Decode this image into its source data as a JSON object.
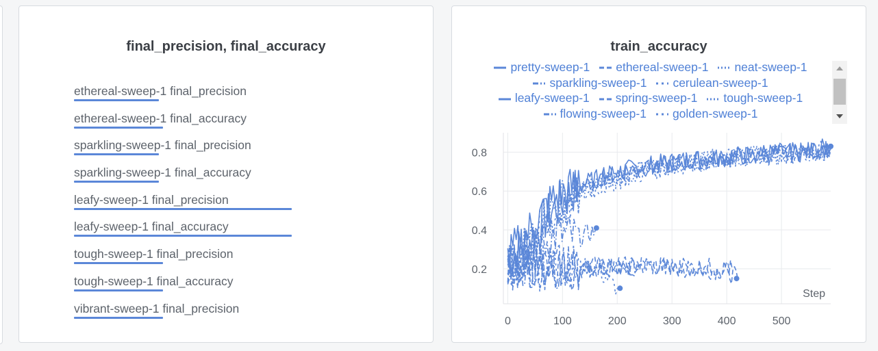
{
  "left_panel": {
    "title": "final_precision, final_accuracy",
    "bars": [
      {
        "label": "ethereal-sweep-1 final_precision",
        "value": 0.39
      },
      {
        "label": "ethereal-sweep-1 final_accuracy",
        "value": 0.41
      },
      {
        "label": "sparkling-sweep-1 final_precision",
        "value": 0.39
      },
      {
        "label": "sparkling-sweep-1 final_accuracy",
        "value": 0.39
      },
      {
        "label": "leafy-sweep-1 final_precision",
        "value": 1.0
      },
      {
        "label": "leafy-sweep-1 final_accuracy",
        "value": 1.0
      },
      {
        "label": "tough-sweep-1 final_precision",
        "value": 0.41
      },
      {
        "label": "tough-sweep-1 final_accuracy",
        "value": 0.41
      },
      {
        "label": "vibrant-sweep-1 final_precision",
        "value": 0.41
      }
    ],
    "bar_color": "#5b87d8"
  },
  "right_panel": {
    "title": "train_accuracy"
  },
  "chart_data": {
    "type": "line",
    "title": "train_accuracy",
    "xlabel": "Step",
    "ylabel": "",
    "xlim": [
      -8,
      590
    ],
    "ylim": [
      0.02,
      0.9
    ],
    "x_ticks": [
      0,
      100,
      200,
      300,
      400,
      500
    ],
    "y_ticks": [
      0.2,
      0.4,
      0.6,
      0.8
    ],
    "legend_position": "top",
    "color": "#5b87d8",
    "series": [
      {
        "name": "pretty-sweep-1",
        "dash": "solid",
        "points": [
          [
            0,
            0.22
          ],
          [
            20,
            0.3
          ],
          [
            40,
            0.35
          ],
          [
            60,
            0.42
          ],
          [
            80,
            0.5
          ],
          [
            100,
            0.55
          ],
          [
            120,
            0.6
          ],
          [
            160,
            0.66
          ],
          [
            200,
            0.7
          ],
          [
            250,
            0.73
          ],
          [
            300,
            0.75
          ],
          [
            350,
            0.77
          ],
          [
            400,
            0.78
          ],
          [
            450,
            0.79
          ],
          [
            500,
            0.8
          ],
          [
            550,
            0.8
          ],
          [
            590,
            0.83
          ]
        ]
      },
      {
        "name": "ethereal-sweep-1",
        "dash": "dash",
        "points": [
          [
            0,
            0.2
          ],
          [
            30,
            0.22
          ],
          [
            60,
            0.21
          ],
          [
            90,
            0.22
          ],
          [
            120,
            0.2
          ],
          [
            150,
            0.22
          ],
          [
            180,
            0.21
          ],
          [
            210,
            0.2
          ],
          [
            250,
            0.22
          ],
          [
            300,
            0.21
          ],
          [
            350,
            0.2
          ],
          [
            400,
            0.19
          ],
          [
            420,
            0.15
          ]
        ]
      },
      {
        "name": "neat-sweep-1",
        "dash": "dot",
        "points": [
          [
            0,
            0.18
          ],
          [
            25,
            0.28
          ],
          [
            50,
            0.38
          ],
          [
            80,
            0.48
          ],
          [
            110,
            0.55
          ],
          [
            150,
            0.63
          ],
          [
            200,
            0.68
          ],
          [
            260,
            0.72
          ],
          [
            320,
            0.75
          ],
          [
            380,
            0.77
          ],
          [
            440,
            0.78
          ],
          [
            500,
            0.79
          ],
          [
            590,
            0.81
          ]
        ]
      },
      {
        "name": "sparkling-sweep-1",
        "dash": "dashdot",
        "points": [
          [
            0,
            0.2
          ],
          [
            30,
            0.25
          ],
          [
            60,
            0.32
          ],
          [
            90,
            0.38
          ],
          [
            130,
            0.36
          ],
          [
            160,
            0.4
          ]
        ]
      },
      {
        "name": "cerulean-sweep-1",
        "dash": "longdot",
        "points": [
          [
            0,
            0.22
          ],
          [
            40,
            0.2
          ],
          [
            80,
            0.21
          ],
          [
            120,
            0.22
          ],
          [
            160,
            0.2
          ],
          [
            200,
            0.1
          ]
        ]
      },
      {
        "name": "leafy-sweep-1",
        "dash": "solid",
        "points": [
          [
            0,
            0.25
          ],
          [
            40,
            0.4
          ],
          [
            80,
            0.55
          ],
          [
            120,
            0.62
          ],
          [
            180,
            0.68
          ],
          [
            240,
            0.72
          ],
          [
            300,
            0.74
          ],
          [
            360,
            0.76
          ],
          [
            420,
            0.78
          ],
          [
            480,
            0.79
          ],
          [
            540,
            0.8
          ],
          [
            590,
            0.82
          ]
        ]
      },
      {
        "name": "spring-sweep-1",
        "dash": "dash",
        "points": [
          [
            0,
            0.2
          ],
          [
            50,
            0.22
          ],
          [
            100,
            0.21
          ],
          [
            150,
            0.2
          ],
          [
            200,
            0.21
          ],
          [
            250,
            0.22
          ],
          [
            300,
            0.2
          ],
          [
            350,
            0.21
          ],
          [
            410,
            0.2
          ]
        ]
      },
      {
        "name": "tough-sweep-1",
        "dash": "dot",
        "points": [
          [
            0,
            0.15
          ],
          [
            30,
            0.3
          ],
          [
            60,
            0.45
          ],
          [
            100,
            0.55
          ],
          [
            150,
            0.62
          ],
          [
            200,
            0.67
          ],
          [
            260,
            0.71
          ],
          [
            320,
            0.74
          ],
          [
            380,
            0.76
          ],
          [
            440,
            0.78
          ],
          [
            500,
            0.79
          ],
          [
            590,
            0.8
          ]
        ]
      },
      {
        "name": "flowing-sweep-1",
        "dash": "dashdot",
        "points": [
          [
            0,
            0.21
          ],
          [
            40,
            0.24
          ],
          [
            80,
            0.2
          ],
          [
            120,
            0.22
          ],
          [
            160,
            0.2
          ],
          [
            200,
            0.21
          ],
          [
            240,
            0.2
          ]
        ]
      },
      {
        "name": "golden-sweep-1",
        "dash": "longdot",
        "points": [
          [
            0,
            0.2
          ],
          [
            40,
            0.32
          ],
          [
            80,
            0.45
          ],
          [
            120,
            0.55
          ],
          [
            170,
            0.62
          ],
          [
            230,
            0.68
          ],
          [
            290,
            0.72
          ],
          [
            350,
            0.75
          ],
          [
            410,
            0.77
          ],
          [
            470,
            0.78
          ],
          [
            530,
            0.79
          ],
          [
            590,
            0.82
          ]
        ]
      }
    ],
    "markers": [
      [
        162,
        0.41
      ],
      [
        205,
        0.1
      ],
      [
        418,
        0.15
      ],
      [
        590,
        0.83
      ]
    ]
  }
}
